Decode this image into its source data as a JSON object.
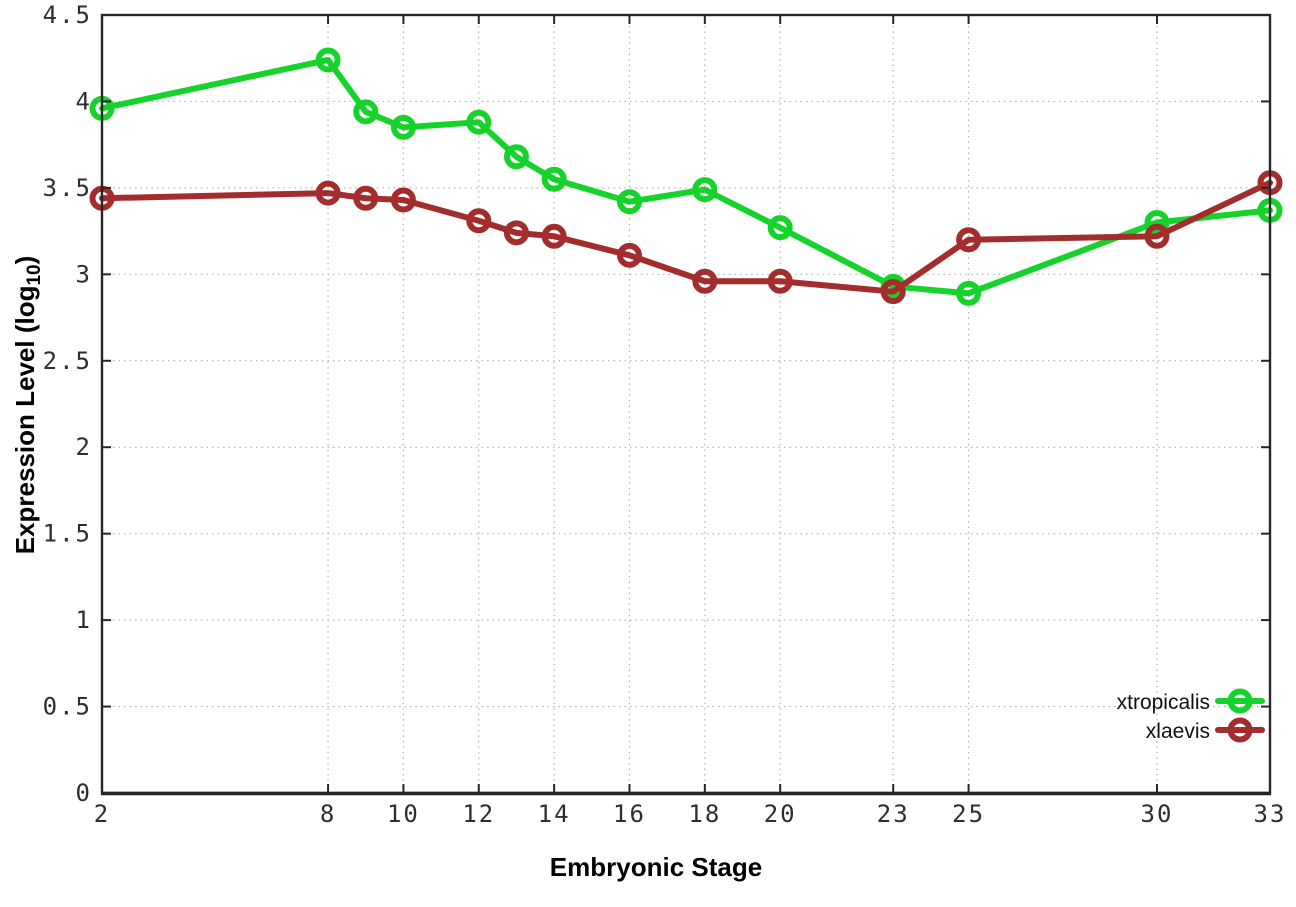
{
  "chart_data": {
    "type": "line",
    "title": "",
    "xlabel": "Embryonic Stage",
    "ylabel": "Expression Level (log10)",
    "ylabel_parts": {
      "main": "Expression Level (log",
      "sub": "10",
      "suffix": ")"
    },
    "xlim": [
      2,
      33
    ],
    "ylim": [
      0,
      4.5
    ],
    "x_ticks": [
      2,
      8,
      10,
      12,
      14,
      16,
      18,
      20,
      23,
      25,
      30,
      33
    ],
    "x_tick_labels": [
      "2",
      "8",
      "10",
      "12",
      "14",
      "16",
      "18",
      "20",
      "23",
      "25",
      "30",
      "33"
    ],
    "y_ticks": [
      0,
      0.5,
      1,
      1.5,
      2,
      2.5,
      3,
      3.5,
      4,
      4.5
    ],
    "y_tick_labels": [
      "0",
      "0.5",
      "1",
      "1.5",
      "2",
      "2.5",
      "3",
      "3.5",
      "4",
      "4.5"
    ],
    "grid": true,
    "grid_x": [
      8,
      10,
      12,
      14,
      16,
      18,
      20,
      23,
      25,
      30
    ],
    "grid_y": [
      0.5,
      1,
      1.5,
      2,
      2.5,
      3,
      3.5,
      4
    ],
    "legend_position": "bottom-right",
    "series": [
      {
        "name": "xtropicalis",
        "color": "#15d32b",
        "marker": "open-circle",
        "points": [
          [
            2,
            3.96
          ],
          [
            8,
            4.24
          ],
          [
            9,
            3.94
          ],
          [
            10,
            3.85
          ],
          [
            12,
            3.88
          ],
          [
            13,
            3.68
          ],
          [
            14,
            3.55
          ],
          [
            16,
            3.42
          ],
          [
            18,
            3.49
          ],
          [
            20,
            3.27
          ],
          [
            23,
            2.93
          ],
          [
            25,
            2.89
          ],
          [
            30,
            3.3
          ],
          [
            33,
            3.37
          ]
        ]
      },
      {
        "name": "xlaevis",
        "color": "#a32c2c",
        "marker": "open-circle",
        "points": [
          [
            2,
            3.44
          ],
          [
            8,
            3.47
          ],
          [
            9,
            3.44
          ],
          [
            10,
            3.43
          ],
          [
            12,
            3.31
          ],
          [
            13,
            3.24
          ],
          [
            14,
            3.22
          ],
          [
            16,
            3.11
          ],
          [
            18,
            2.96
          ],
          [
            20,
            2.96
          ],
          [
            23,
            2.9
          ],
          [
            25,
            3.2
          ],
          [
            30,
            3.22
          ],
          [
            33,
            3.53
          ]
        ]
      }
    ],
    "colors": {
      "background": "#ffffff",
      "grid": "#b5b5b5",
      "frame": "#262626",
      "tick_text": "#2e2e2e",
      "label_text": "#000000"
    }
  }
}
